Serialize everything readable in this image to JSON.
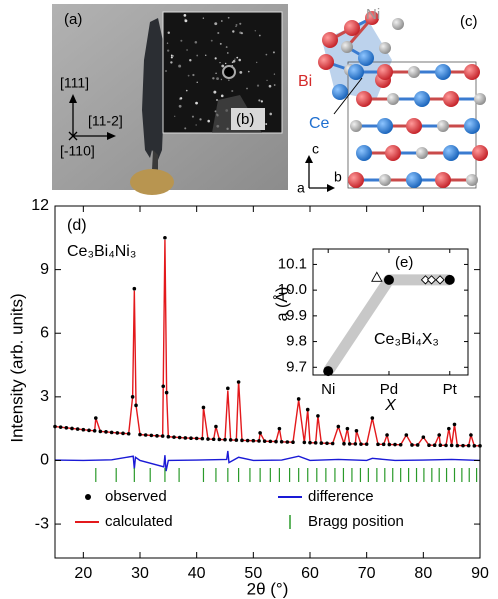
{
  "image_panels": {
    "a": {
      "label": "(a)",
      "directions": [
        "[111]",
        "[11-2]",
        "[-110]"
      ]
    },
    "b": {
      "label": "(b)"
    },
    "c": {
      "label": "(c)",
      "atoms": [
        "Ni",
        "Bi",
        "Ce"
      ],
      "axes": [
        "c",
        "a",
        "b"
      ]
    }
  },
  "chart_data": [
    {
      "type": "line",
      "annotations": [
        "(d)",
        "Ce₃Bi₄Ni₃"
      ],
      "xlabel": "2θ (°)",
      "ylabel": "Intensity (arb. units)",
      "xlim": [
        15,
        90
      ],
      "xticks": [
        20,
        30,
        40,
        50,
        60,
        70,
        80,
        90
      ],
      "ylim": [
        -4.6,
        12
      ],
      "yticks": [
        -3,
        0,
        3,
        6,
        9,
        12
      ],
      "legend": "lower left",
      "x": [
        15,
        16,
        17,
        18,
        19,
        20,
        21,
        22,
        22.2,
        23,
        24,
        25,
        26,
        27,
        28,
        28.7,
        29,
        29.3,
        30,
        31,
        32,
        33,
        34,
        34.1,
        34.4,
        34.7,
        35,
        36,
        37,
        38,
        39,
        40,
        41,
        41.2,
        42,
        43,
        43.4,
        44,
        45,
        45.5,
        46,
        47,
        47.4,
        48,
        49,
        50,
        51,
        51.2,
        52,
        53,
        54,
        54.6,
        55,
        56,
        57,
        58,
        59,
        59.6,
        60,
        61,
        61.4,
        62,
        63,
        64,
        65,
        66,
        66.6,
        67,
        68,
        68.2,
        69,
        70,
        71,
        72,
        73,
        73.6,
        74,
        75,
        76,
        77,
        78,
        79,
        80,
        81,
        82,
        82.8,
        83,
        84,
        84.5,
        85,
        85.5,
        86,
        87,
        88,
        88.4,
        89,
        90
      ],
      "series": [
        {
          "name": "observed",
          "style": "dots",
          "color": "#000000",
          "values": [
            1.6,
            1.57,
            1.54,
            1.51,
            1.48,
            1.45,
            1.42,
            1.4,
            2.0,
            1.37,
            1.35,
            1.32,
            1.3,
            1.28,
            1.26,
            3.0,
            8.1,
            2.6,
            1.22,
            1.2,
            1.18,
            1.16,
            1.15,
            3.5,
            10.5,
            3.2,
            1.12,
            1.1,
            1.08,
            1.06,
            1.05,
            1.04,
            1.03,
            2.5,
            1.01,
            1.0,
            1.6,
            0.99,
            0.98,
            3.4,
            0.97,
            0.96,
            3.7,
            0.95,
            0.94,
            0.93,
            0.92,
            1.3,
            0.91,
            0.9,
            0.89,
            1.5,
            0.88,
            0.87,
            0.86,
            2.9,
            0.85,
            2.4,
            0.84,
            0.83,
            2.1,
            0.82,
            0.81,
            0.8,
            1.6,
            0.79,
            1.5,
            0.78,
            0.78,
            1.4,
            0.77,
            0.77,
            2.0,
            0.76,
            0.76,
            1.2,
            0.75,
            0.75,
            0.74,
            1.2,
            0.73,
            0.73,
            1.1,
            0.72,
            0.72,
            1.2,
            0.72,
            0.71,
            1.5,
            0.71,
            1.7,
            0.7,
            0.7,
            0.7,
            1.2,
            0.69,
            0.69
          ]
        },
        {
          "name": "calculated",
          "style": "line",
          "color": "#e3191c",
          "values": [
            1.6,
            1.57,
            1.54,
            1.51,
            1.48,
            1.45,
            1.42,
            1.4,
            2.0,
            1.37,
            1.35,
            1.32,
            1.3,
            1.28,
            1.26,
            3.0,
            8.0,
            2.6,
            1.22,
            1.2,
            1.18,
            1.16,
            1.15,
            3.5,
            10.4,
            3.2,
            1.12,
            1.1,
            1.08,
            1.06,
            1.05,
            1.04,
            1.03,
            2.5,
            1.01,
            1.0,
            1.6,
            0.99,
            0.98,
            3.3,
            0.97,
            0.96,
            3.75,
            0.95,
            0.94,
            0.93,
            0.92,
            1.3,
            0.91,
            0.9,
            0.89,
            1.5,
            0.88,
            0.87,
            0.86,
            2.85,
            0.85,
            2.4,
            0.84,
            0.83,
            2.1,
            0.82,
            0.81,
            0.8,
            1.6,
            0.79,
            1.5,
            0.78,
            0.78,
            1.4,
            0.77,
            0.77,
            2.0,
            0.76,
            0.76,
            1.2,
            0.75,
            0.75,
            0.74,
            1.2,
            0.73,
            0.73,
            1.1,
            0.72,
            0.72,
            1.2,
            0.72,
            0.71,
            1.5,
            0.71,
            1.7,
            0.7,
            0.7,
            0.7,
            1.2,
            0.69,
            0.69
          ]
        },
        {
          "name": "difference",
          "style": "line",
          "color": "#1a1ad6",
          "x": [
            15,
            20,
            25,
            28.8,
            29,
            29.2,
            30,
            34.2,
            34.4,
            34.6,
            35,
            40,
            45.3,
            45.5,
            45.7,
            47.4,
            50,
            55,
            58,
            60,
            65,
            70,
            71,
            75,
            80,
            85,
            90
          ],
          "values": [
            0.02,
            0,
            0.03,
            0.2,
            -0.4,
            0.15,
            0,
            -0.3,
            0.25,
            -0.5,
            0,
            0.02,
            0.05,
            0.45,
            -0.1,
            0.15,
            0,
            0.02,
            0.2,
            0,
            0.05,
            0,
            0.1,
            0,
            0.02,
            0.05,
            0
          ]
        },
        {
          "name": "Bragg position",
          "style": "ticks",
          "color": "#2a9a2a",
          "x": [
            22.2,
            25.8,
            29.0,
            31.8,
            34.4,
            36.9,
            41.2,
            43.4,
            45.5,
            47.4,
            49.4,
            51.2,
            53.0,
            54.6,
            56.4,
            58.0,
            59.6,
            61.2,
            62.8,
            64.4,
            65.9,
            67.4,
            68.9,
            70.3,
            71.8,
            73.2,
            74.6,
            76.0,
            77.4,
            78.8,
            80.1,
            81.5,
            82.8,
            84.1,
            85.5,
            86.8,
            88.1,
            89.4
          ]
        }
      ]
    },
    {
      "type": "scatter",
      "annotations": [
        "(e)",
        "Ce₃Bi₄X₃"
      ],
      "xlabel": "X",
      "ylabel": "a (Å)",
      "xlim": [
        -0.25,
        2.3
      ],
      "xticks": [
        {
          "value": 0,
          "label": "Ni"
        },
        {
          "value": 1,
          "label": "Pd"
        },
        {
          "value": 2,
          "label": "Pt"
        }
      ],
      "ylim": [
        9.67,
        10.16
      ],
      "yticks": [
        9.7,
        9.8,
        9.9,
        {
          "value": 10,
          "label": "10.0"
        },
        10.1
      ],
      "series": [
        {
          "marker": "filled-circle",
          "color": "#000000",
          "guide_color": "#c8c8c8",
          "x": [
            0,
            1,
            2
          ],
          "values": [
            9.685,
            10.04,
            10.04
          ]
        },
        {
          "marker": "triangle",
          "color": "#000000",
          "x": [
            0.8
          ],
          "values": [
            10.05
          ]
        },
        {
          "marker": "diamond",
          "color": "#000000",
          "x": [
            1.6,
            1.7,
            1.84
          ],
          "values": [
            10.04,
            10.04,
            10.04
          ]
        }
      ]
    }
  ]
}
